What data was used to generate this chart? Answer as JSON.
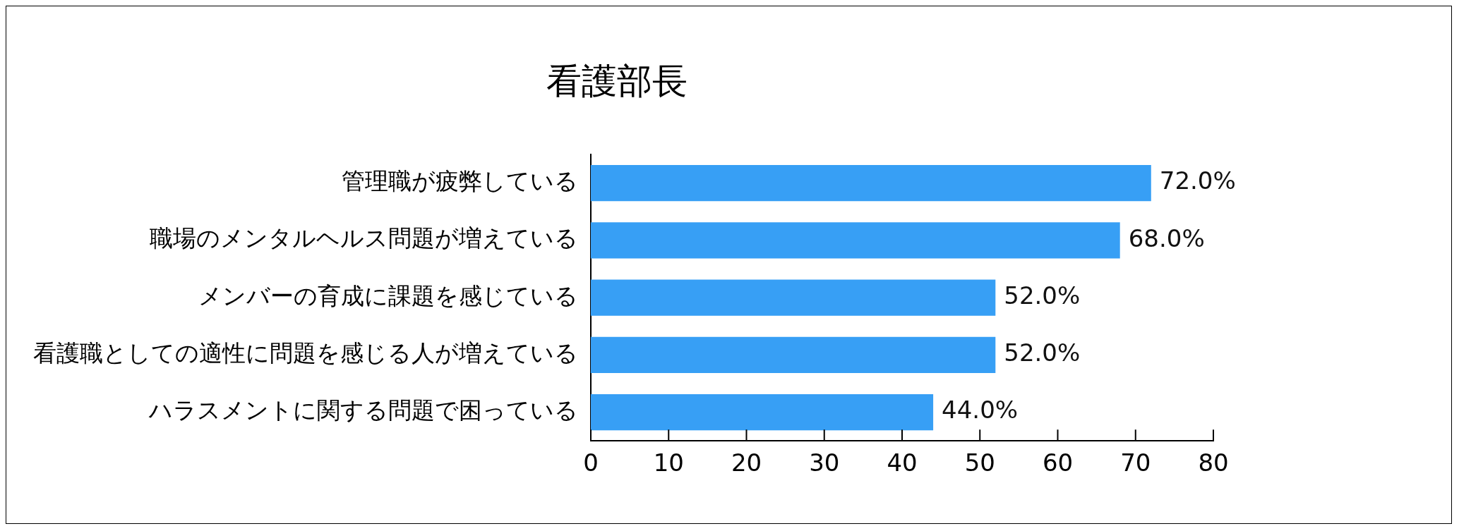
{
  "chart_data": {
    "type": "bar",
    "orientation": "horizontal",
    "title": "看護部長",
    "categories": [
      "管理職が疲弊している",
      "職場のメンタルヘルス問題が増えている",
      "メンバーの育成に課題を感じている",
      "看護職としての適性に問題を感じる人が増えている",
      "ハラスメントに関する問題で困っている"
    ],
    "values": [
      72,
      68,
      52,
      52,
      44
    ],
    "value_labels": [
      "72.0%",
      "68.0%",
      "52.0%",
      "52.0%",
      "44.0%"
    ],
    "color": "#379ff5",
    "xlim": [
      0,
      80
    ],
    "xticks": [
      0,
      10,
      20,
      30,
      40,
      50,
      60,
      70,
      80
    ],
    "grid": false,
    "legend": false
  }
}
